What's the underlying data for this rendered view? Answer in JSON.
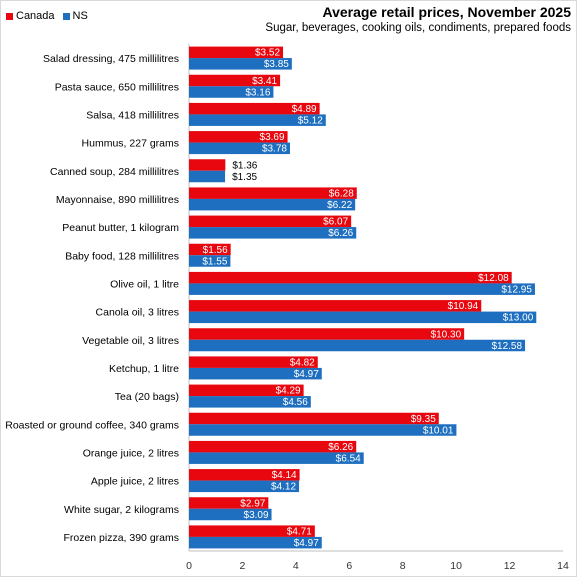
{
  "chart_data": {
    "type": "bar",
    "orientation": "horizontal",
    "title": "Average retail prices, November 2025",
    "subtitle": "Sugar, beverages,  cooking oils, condiments, prepared foods",
    "legend_position": "top-left",
    "categories": [
      "Salad dressing, 475 millilitres",
      "Pasta sauce, 650 millilitres",
      "Salsa, 418 millilitres",
      "Hummus, 227 grams",
      "Canned soup, 284 millilitres",
      "Mayonnaise, 890 millilitres",
      "Peanut butter, 1 kilogram",
      "Baby food, 128 millilitres",
      "Olive oil, 1 litre",
      "Canola oil, 3 litres",
      "Vegetable oil, 3 litres",
      "Ketchup, 1 litre",
      "Tea (20 bags)",
      "Roasted or ground coffee, 340 grams",
      "Orange juice, 2 litres",
      "Apple juice, 2 litres",
      "White sugar, 2 kilograms",
      "Frozen pizza, 390 grams"
    ],
    "series": [
      {
        "name": "Canada",
        "color": "#e8070e",
        "values": [
          3.52,
          3.41,
          4.89,
          3.69,
          1.36,
          6.28,
          6.07,
          1.56,
          12.08,
          10.94,
          10.3,
          4.82,
          4.29,
          9.35,
          6.26,
          4.14,
          2.97,
          4.71
        ]
      },
      {
        "name": "NS",
        "color": "#1e6fbf",
        "values": [
          3.85,
          3.16,
          5.12,
          3.78,
          1.35,
          6.22,
          6.26,
          1.55,
          12.95,
          13.0,
          12.58,
          4.97,
          4.56,
          10.01,
          6.54,
          4.12,
          3.09,
          4.97
        ]
      }
    ],
    "value_labels": {
      "canada": [
        "$3.52",
        "$3.41",
        "$4.89",
        "$3.69",
        "$1.36",
        "$6.28",
        "$6.07",
        "$1.56",
        "$12.08",
        "$10.94",
        "$10.30",
        "$4.82",
        "$4.29",
        "$9.35",
        "$6.26",
        "$4.14",
        "$2.97",
        "$4.71"
      ],
      "ns": [
        "$3.85",
        "$3.16",
        "$5.12",
        "$3.78",
        "$1.35",
        "$6.22",
        "$6.26",
        "$1.55",
        "$12.95",
        "$13.00",
        "$12.58",
        "$4.97",
        "$4.56",
        "$10.01",
        "$6.54",
        "$4.12",
        "$3.09",
        "$4.97"
      ]
    },
    "xlim": [
      0,
      14
    ],
    "xticks": [
      "0",
      "2",
      "4",
      "6",
      "8",
      "10",
      "12",
      "14"
    ],
    "grid": false
  }
}
